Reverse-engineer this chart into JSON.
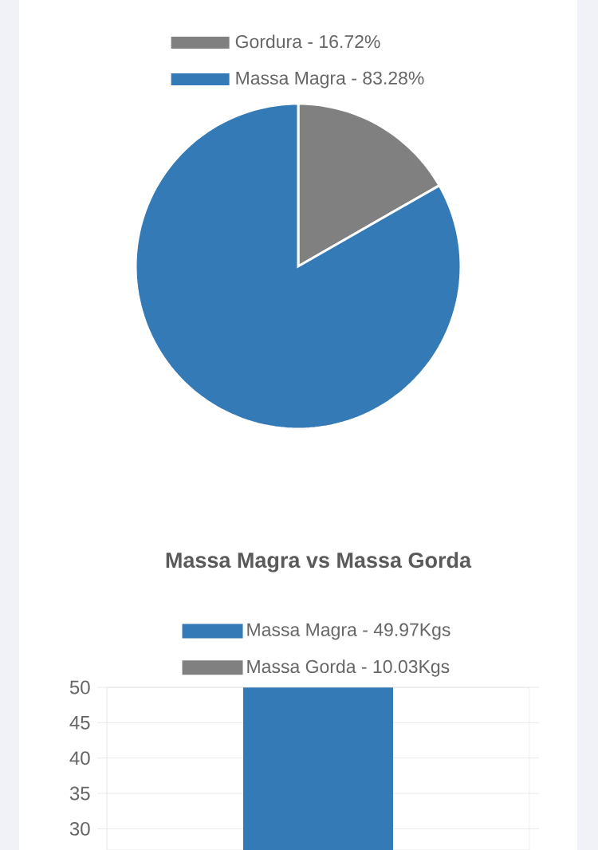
{
  "chart_data": [
    {
      "type": "pie",
      "categories": [
        "Gordura - 16.72%",
        "Massa Magra - 83.28%"
      ],
      "values": [
        16.72,
        83.28
      ],
      "colors": [
        "#808080",
        "#337ab7"
      ],
      "legend": "top"
    },
    {
      "type": "bar",
      "title": "Massa Magra vs Massa Gorda",
      "categories": [
        null
      ],
      "series": [
        {
          "name": "Massa Magra - 49.97Kgs",
          "color": "#337ab7",
          "values": [
            49.97
          ]
        },
        {
          "name": "Massa Gorda - 10.03Kgs",
          "color": "#808080",
          "values": [
            null
          ]
        }
      ],
      "ylim": [
        27,
        50
      ],
      "yticks": [
        30,
        35,
        40,
        45,
        50
      ],
      "grid": "y",
      "legend": "top",
      "tick_labels": "y"
    }
  ]
}
